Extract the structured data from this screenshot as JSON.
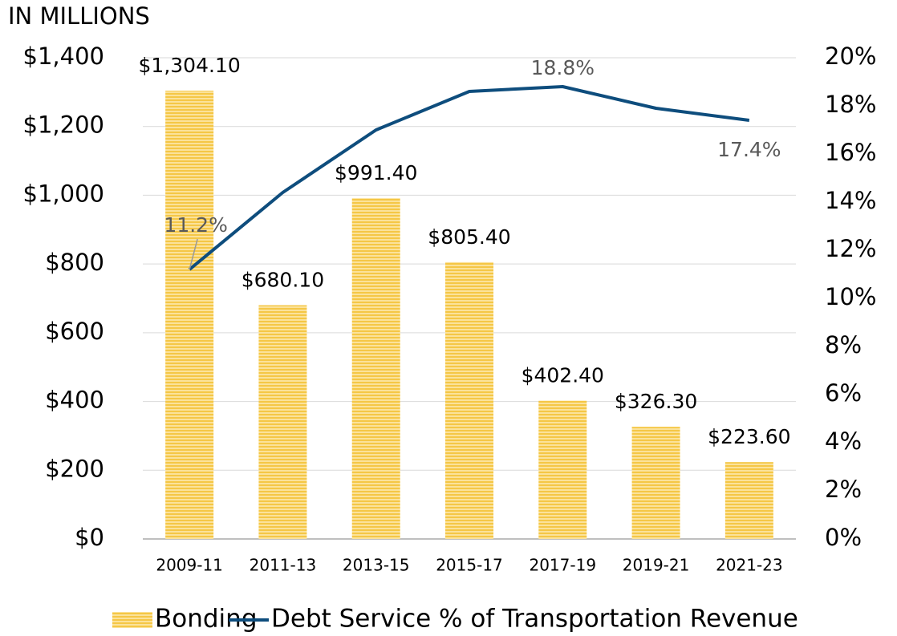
{
  "chart_data": {
    "type": "bar",
    "ylabel": "IN MILLIONS",
    "categories": [
      "2009-11",
      "2011-13",
      "2013-15",
      "2015-17",
      "2017-19",
      "2019-21",
      "2021-23"
    ],
    "series": [
      {
        "name": "Bonding",
        "type": "bar",
        "color": "#f7c948",
        "values": [
          1304.1,
          680.1,
          991.4,
          805.4,
          402.4,
          326.3,
          223.6
        ],
        "value_labels": [
          "$1,304.10",
          "$680.10",
          "$991.40",
          "$805.40",
          "$402.40",
          "$326.30",
          "$223.60"
        ]
      },
      {
        "name": "Debt Service % of Transportation Revenue",
        "type": "line",
        "axis": "y2",
        "color": "#0e4d7d",
        "values": [
          11.2,
          14.4,
          17.0,
          18.6,
          18.8,
          17.9,
          17.4
        ],
        "value_labels": [
          "11.2%",
          null,
          null,
          null,
          "18.8%",
          null,
          "17.4%"
        ]
      }
    ],
    "ylim": [
      0,
      1400
    ],
    "yticks": [
      {
        "value": 0,
        "label": "$0"
      },
      {
        "value": 200,
        "label": "$200"
      },
      {
        "value": 400,
        "label": "$400"
      },
      {
        "value": 600,
        "label": "$600"
      },
      {
        "value": 800,
        "label": "$800"
      },
      {
        "value": 1000,
        "label": "$1,000"
      },
      {
        "value": 1200,
        "label": "$1,200"
      },
      {
        "value": 1400,
        "label": "$1,400"
      }
    ],
    "y2lim": [
      0,
      20
    ],
    "y2ticks": [
      {
        "value": 0,
        "label": "0%"
      },
      {
        "value": 2,
        "label": "2%"
      },
      {
        "value": 4,
        "label": "4%"
      },
      {
        "value": 6,
        "label": "6%"
      },
      {
        "value": 8,
        "label": "8%"
      },
      {
        "value": 10,
        "label": "10%"
      },
      {
        "value": 12,
        "label": "12%"
      },
      {
        "value": 14,
        "label": "14%"
      },
      {
        "value": 16,
        "label": "16%"
      },
      {
        "value": 18,
        "label": "18%"
      },
      {
        "value": 20,
        "label": "20%"
      }
    ],
    "grid": true,
    "legend": "bottom"
  }
}
